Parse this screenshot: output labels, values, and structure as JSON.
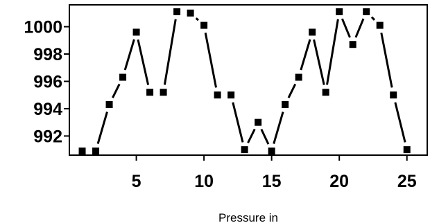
{
  "chart_data": {
    "type": "line",
    "title": "",
    "xlabel": "Pressure in",
    "ylabel": "",
    "xlim": [
      0.05,
      26.5
    ],
    "ylim": [
      990.6,
      1001.6
    ],
    "x_ticks": [
      5,
      10,
      15,
      20,
      25
    ],
    "y_ticks": [
      992,
      994,
      996,
      998,
      1000
    ],
    "x_tick_labels": [
      "5",
      "10",
      "15",
      "20",
      "25"
    ],
    "y_tick_labels": [
      "992",
      "994",
      "996",
      "998",
      "1000"
    ],
    "grid": false,
    "legend": "none",
    "marker": "square",
    "line_color": "#000000",
    "series": [
      {
        "x": [
          1,
          2,
          3,
          4,
          5,
          6,
          7,
          8,
          9,
          10,
          11,
          12,
          13,
          14,
          15,
          16,
          17,
          18,
          19,
          20,
          21,
          22,
          23,
          24,
          25
        ],
        "values": [
          990.9,
          990.9,
          994.3,
          996.3,
          999.6,
          995.2,
          995.2,
          1001.1,
          1001.0,
          1000.1,
          995.0,
          995.0,
          991.0,
          993.0,
          990.9,
          994.3,
          996.3,
          999.6,
          995.2,
          1001.1,
          998.7,
          1001.1,
          1000.1,
          995.0,
          991.0
        ]
      }
    ]
  }
}
